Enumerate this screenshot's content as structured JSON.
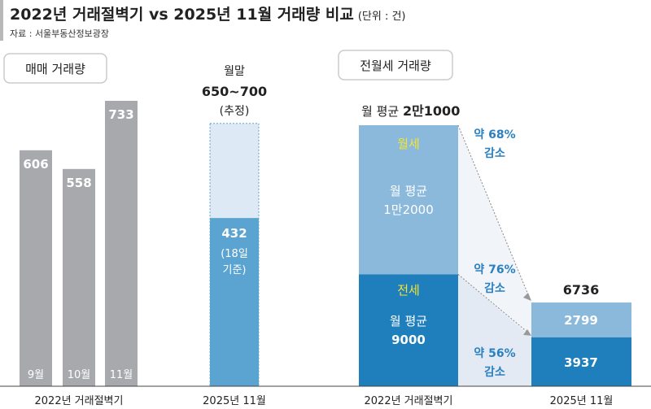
{
  "header": {
    "title": "2022년 거래절벽기 vs 2025년 11월 거래량 비교",
    "unit": "(단위 : 건)",
    "source": "자료 : 서울부동산정보광장"
  },
  "chart_data": [
    {
      "type": "bar",
      "title": "매매 거래량",
      "groups": [
        {
          "label": "2022년 거래절벽기",
          "categories": [
            "9월",
            "10월",
            "11월"
          ],
          "values": [
            606,
            558,
            733
          ]
        },
        {
          "label": "2025년 11월",
          "value": 432,
          "value_label": "432",
          "note": "(18일 기준)",
          "estimate": {
            "range": [
              650,
              700
            ],
            "label_top": "월말",
            "label_value": "650~700",
            "label_note": "(추정)"
          }
        }
      ],
      "colors": {
        "past": "#a7a9ac",
        "current": "#5ba3d0",
        "estimate_fill": "#dde9f4",
        "estimate_border": "#5ba3d0"
      }
    },
    {
      "type": "stacked-bar",
      "title": "전월세 거래량",
      "categories": [
        "2022년 거래절벽기",
        "2025년 11월"
      ],
      "series": [
        {
          "name": "전세",
          "values": [
            9000,
            3937
          ],
          "color": "#1f7fbc"
        },
        {
          "name": "월세",
          "values": [
            12000,
            2799
          ],
          "color": "#8ab9dc"
        }
      ],
      "totals": [
        21000,
        6736
      ],
      "labels": {
        "total_2022": "월 평균 2만1000",
        "monthly_2022": [
          "월 평균",
          "1만2000"
        ],
        "jeonse_2022": [
          "월 평균",
          "9000"
        ],
        "total_2025": "6736",
        "monthly_2025": "2799",
        "jeonse_2025": "3937"
      },
      "annotations": [
        [
          "약 68%",
          "감소"
        ],
        [
          "약 76%",
          "감소"
        ],
        [
          "약 56%",
          "감소"
        ]
      ],
      "label_color": "#f2e537",
      "annotation_color": "#2a80c0"
    }
  ]
}
